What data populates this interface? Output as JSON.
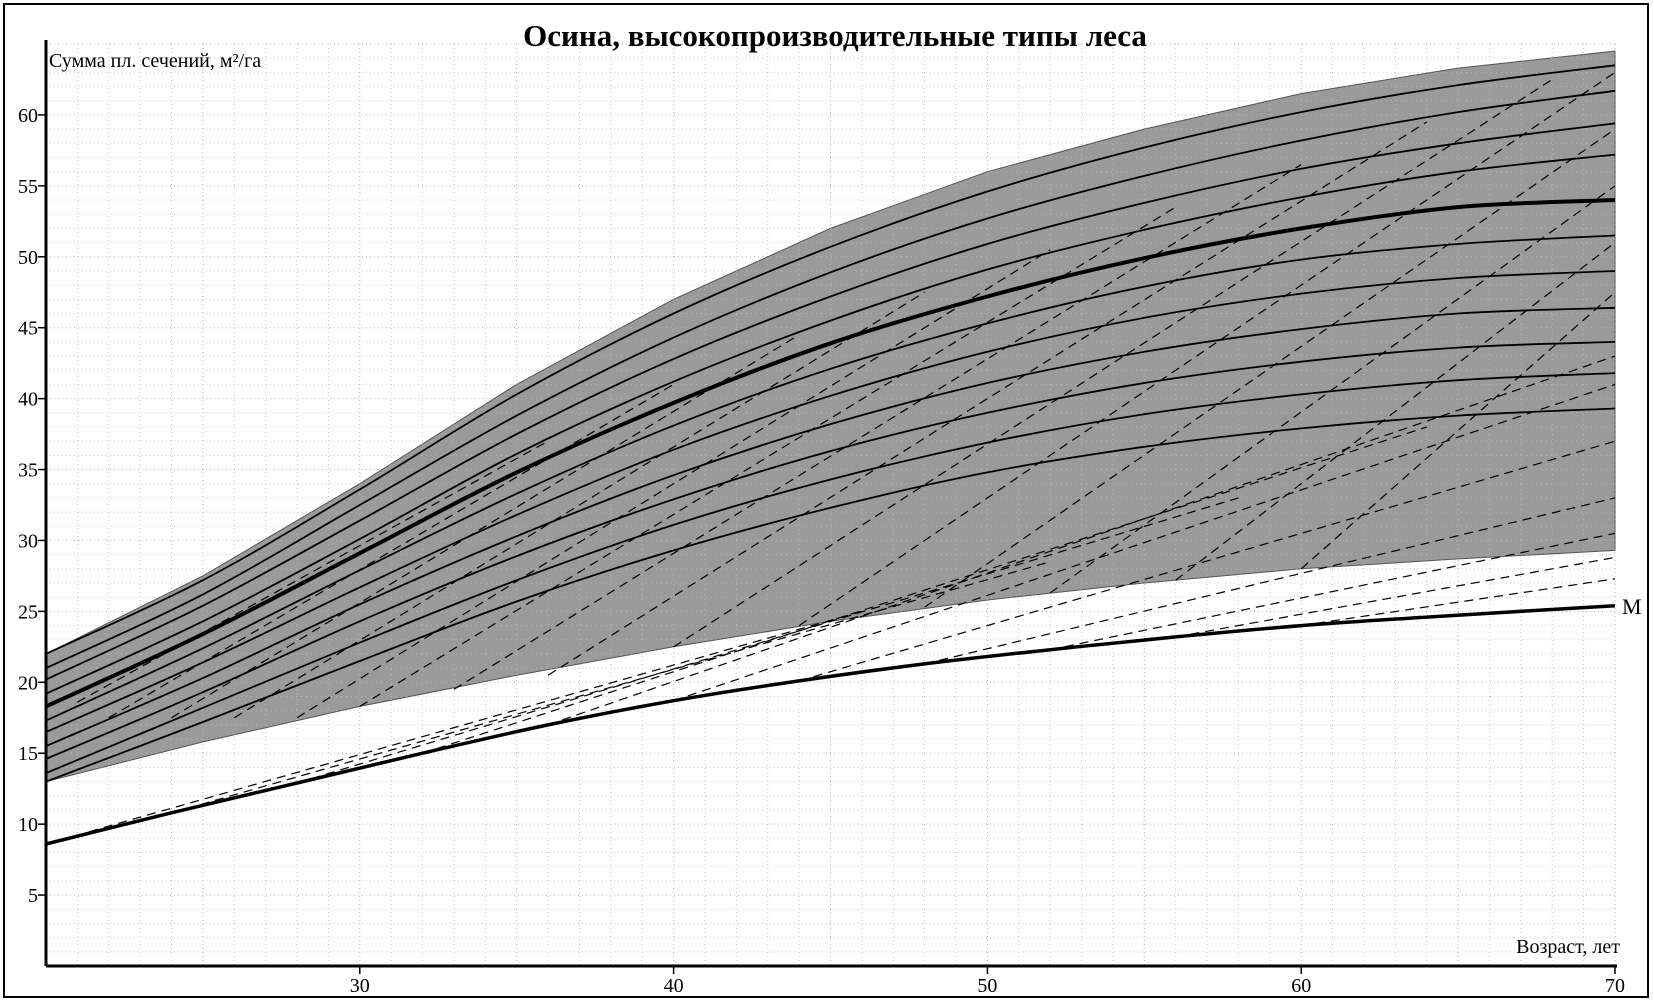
{
  "chart_data": {
    "type": "line",
    "title": "Осина, высокопроизводительные типы леса",
    "xlabel": "Возраст, лет",
    "ylabel": "Сумма пл. сечений, м²/га",
    "xlim": [
      20,
      70
    ],
    "ylim": [
      0,
      65
    ],
    "x_ticks": [
      30,
      40,
      50,
      60,
      70
    ],
    "y_ticks": [
      5,
      10,
      15,
      20,
      25,
      30,
      35,
      40,
      45,
      50,
      55,
      60
    ],
    "grid": true,
    "colors": {
      "band": "#9a9a9a",
      "lines": "#000000",
      "grid": "#c8c8c8",
      "background": "#ffffff"
    },
    "band": {
      "x": [
        20,
        25,
        30,
        35,
        40,
        45,
        50,
        55,
        60,
        65,
        70
      ],
      "upper": [
        22,
        27.5,
        34,
        41,
        47,
        52,
        56,
        59,
        61.5,
        63.3,
        64.5
      ],
      "lower": [
        13,
        15.8,
        18.3,
        20.5,
        22.5,
        24.3,
        25.8,
        27,
        28,
        28.7,
        29.3
      ]
    },
    "x": [
      20,
      25,
      30,
      35,
      40,
      45,
      50,
      55,
      60,
      65,
      70
    ],
    "series": [
      {
        "values": [
          22,
          27.2,
          33.6,
          40.3,
          46,
          50.7,
          54.6,
          57.7,
          60.2,
          62.1,
          63.5
        ],
        "bold": false
      },
      {
        "values": [
          21,
          26.2,
          32.5,
          38.8,
          44.3,
          48.9,
          52.7,
          55.7,
          58.2,
          60.2,
          61.7
        ],
        "bold": false
      },
      {
        "values": [
          20.2,
          25.4,
          31.4,
          37.5,
          42.8,
          47.2,
          50.9,
          53.8,
          56.2,
          58,
          59.4
        ],
        "bold": false
      },
      {
        "values": [
          19.2,
          24.3,
          30.1,
          36.1,
          41.2,
          45.5,
          49.1,
          51.9,
          54.2,
          56,
          57.2
        ],
        "bold": false
      },
      {
        "values": [
          18.3,
          23.4,
          29.1,
          34.8,
          39.7,
          43.9,
          47.2,
          49.9,
          52,
          53.5,
          54
        ],
        "bold": true
      },
      {
        "values": [
          17.3,
          22.4,
          27.9,
          33.3,
          38.1,
          42.1,
          45.3,
          47.9,
          49.8,
          50.9,
          51.5
        ],
        "bold": false
      },
      {
        "values": [
          16.5,
          21.4,
          26.7,
          31.8,
          36.4,
          40.2,
          43.3,
          45.7,
          47.4,
          48.5,
          49
        ],
        "bold": false
      },
      {
        "values": [
          15.5,
          20.3,
          25.5,
          30.3,
          34.6,
          38.2,
          41.1,
          43.3,
          44.9,
          46,
          46.4
        ],
        "bold": false
      },
      {
        "values": [
          14.6,
          19.3,
          24.3,
          28.9,
          32.9,
          36.3,
          39,
          41.1,
          42.6,
          43.6,
          44
        ],
        "bold": false
      },
      {
        "values": [
          13.6,
          18.2,
          22.8,
          27.2,
          31.1,
          34.3,
          36.9,
          38.9,
          40.3,
          41.3,
          41.8
        ],
        "bold": false
      },
      {
        "values": [
          13,
          17.2,
          21.5,
          25.7,
          29.3,
          32.3,
          34.8,
          36.6,
          37.9,
          38.8,
          39.3
        ],
        "bold": false
      }
    ],
    "lower_line": {
      "label": "M",
      "x": [
        20,
        24,
        28,
        32,
        36,
        40,
        44,
        48,
        52,
        56,
        60,
        64,
        70
      ],
      "values": [
        8.6,
        10.8,
        12.9,
        15,
        17,
        18.7,
        20.1,
        21.3,
        22.3,
        23.2,
        24,
        24.6,
        25.4
      ]
    },
    "dashed_lines": [
      {
        "x": [
          20,
          46
        ],
        "y": [
          8.6,
          25
        ]
      },
      {
        "x": [
          24,
          52
        ],
        "y": [
          10.8,
          28.5
        ]
      },
      {
        "x": [
          28,
          58
        ],
        "y": [
          12.9,
          33
        ]
      },
      {
        "x": [
          32,
          64
        ],
        "y": [
          15,
          38
        ]
      },
      {
        "x": [
          36,
          70
        ],
        "y": [
          17,
          43
        ]
      },
      {
        "x": [
          40,
          70
        ],
        "y": [
          18.7,
          41
        ]
      },
      {
        "x": [
          44,
          70
        ],
        "y": [
          20.1,
          37
        ]
      },
      {
        "x": [
          48,
          70
        ],
        "y": [
          21.3,
          33
        ]
      },
      {
        "x": [
          52,
          70
        ],
        "y": [
          22.3,
          30.5
        ]
      },
      {
        "x": [
          56,
          70
        ],
        "y": [
          23.2,
          28.8
        ]
      },
      {
        "x": [
          60,
          70
        ],
        "y": [
          24,
          27.3
        ]
      },
      {
        "x": [
          21,
          36
        ],
        "y": [
          18.6,
          37
        ]
      },
      {
        "x": [
          22,
          40
        ],
        "y": [
          17.5,
          41
        ]
      },
      {
        "x": [
          24,
          44
        ],
        "y": [
          17.5,
          44.5
        ]
      },
      {
        "x": [
          26,
          48
        ],
        "y": [
          17.5,
          47.5
        ]
      },
      {
        "x": [
          28,
          52
        ],
        "y": [
          17.5,
          50.5
        ]
      },
      {
        "x": [
          30,
          56
        ],
        "y": [
          18.3,
          53.5
        ]
      },
      {
        "x": [
          33,
          60
        ],
        "y": [
          19.5,
          56.5
        ]
      },
      {
        "x": [
          36,
          64
        ],
        "y": [
          20.5,
          59.5
        ]
      },
      {
        "x": [
          40,
          68
        ],
        "y": [
          22.5,
          62.5
        ]
      },
      {
        "x": [
          44,
          70
        ],
        "y": [
          24,
          63
        ]
      },
      {
        "x": [
          48,
          70
        ],
        "y": [
          25.3,
          59
        ]
      },
      {
        "x": [
          52,
          70
        ],
        "y": [
          26.3,
          55
        ]
      },
      {
        "x": [
          56,
          70
        ],
        "y": [
          27.2,
          51
        ]
      },
      {
        "x": [
          60,
          70
        ],
        "y": [
          28,
          47.5
        ]
      }
    ]
  }
}
